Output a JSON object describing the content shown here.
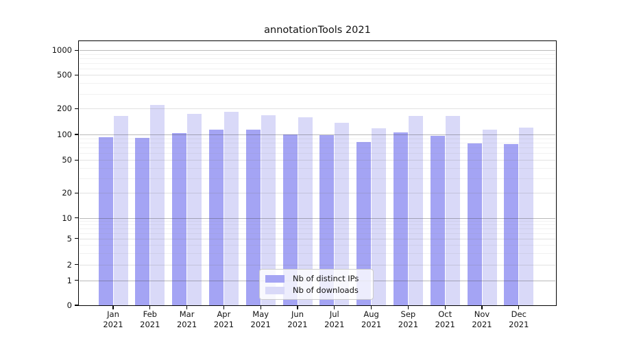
{
  "title": "annotationTools 2021",
  "chart_data": {
    "type": "bar",
    "title": "annotationTools 2021",
    "categories": [
      "Jan 2021",
      "Feb 2021",
      "Mar 2021",
      "Apr 2021",
      "May 2021",
      "Jun 2021",
      "Jul 2021",
      "Aug 2021",
      "Sep 2021",
      "Oct 2021",
      "Nov 2021",
      "Dec 2021"
    ],
    "series": [
      {
        "name": "Nb of distinct IPs",
        "color": "#a4a4f4",
        "values": [
          93,
          91,
          104,
          114,
          114,
          100,
          98,
          81,
          106,
          96,
          78,
          77
        ]
      },
      {
        "name": "Nb of downloads",
        "color": "#d9d9f8",
        "values": [
          165,
          220,
          173,
          182,
          168,
          158,
          137,
          117,
          164,
          163,
          114,
          121
        ]
      }
    ],
    "xlabel": "",
    "ylabel": "",
    "yscale": "symlog",
    "yticks": [
      0,
      1,
      2,
      5,
      10,
      20,
      50,
      100,
      200,
      500,
      1000
    ],
    "ylim": [
      0,
      1280
    ],
    "grid": true,
    "legend_position": "lower center"
  },
  "legend": {
    "items": [
      {
        "label": "Nb of distinct IPs"
      },
      {
        "label": "Nb of downloads"
      }
    ]
  }
}
